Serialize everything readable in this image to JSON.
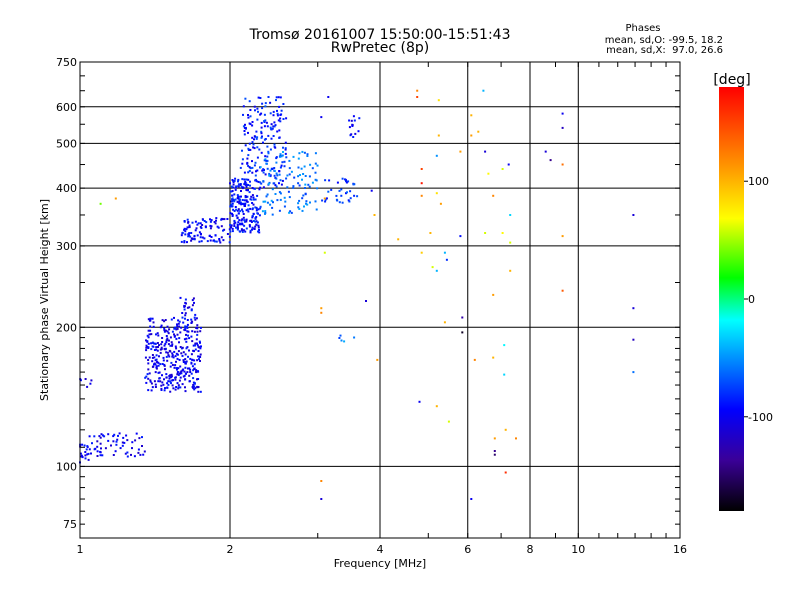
{
  "chart_data": {
    "type": "scatter",
    "title": "Tromsø 20161007 15:50:00-15:51:43",
    "subtitle": "RwPretec (8p)",
    "annotation": {
      "heading": "Phases",
      "line1": "mean, sd,O: -99.5, 18.2",
      "line2": "mean, sd,X:  97.0, 26.6"
    },
    "xlabel": "Frequency [MHz]",
    "ylabel": "Stationary phase Virtual Height [km]",
    "x_scale": "log",
    "y_scale": "log",
    "xlim": [
      1,
      16
    ],
    "ylim": [
      70,
      750
    ],
    "x_ticks": [
      1,
      2,
      4,
      6,
      8,
      10,
      16
    ],
    "x_tick_labels": [
      "1",
      "2",
      "4",
      "6",
      "8",
      "10",
      "16"
    ],
    "y_ticks": [
      75,
      100,
      200,
      300,
      400,
      500,
      600,
      750
    ],
    "y_tick_labels": [
      "75",
      "100",
      "200",
      "300",
      "400",
      "500",
      "600",
      "750"
    ],
    "grid": true,
    "colorbar": {
      "label": "[deg]",
      "range": [
        -180,
        180
      ],
      "ticks": [
        100,
        0,
        -100
      ],
      "tick_labels": [
        "100",
        "0",
        "-100"
      ]
    },
    "clusters": [
      {
        "x": [
          1.0,
          1.05
        ],
        "y": [
          102,
          112
        ],
        "n": 18,
        "phase": -100
      },
      {
        "x": [
          1.04,
          1.35
        ],
        "y": [
          105,
          118
        ],
        "n": 60,
        "phase": -100
      },
      {
        "x": [
          1.0,
          1.06
        ],
        "y": [
          148,
          156
        ],
        "n": 6,
        "phase": -100
      },
      {
        "x": [
          1.35,
          1.75
        ],
        "y": [
          145,
          210
        ],
        "n": 380,
        "phase": -100
      },
      {
        "x": [
          1.58,
          1.72
        ],
        "y": [
          210,
          235
        ],
        "n": 20,
        "phase": -100
      },
      {
        "x": [
          1.6,
          2.0
        ],
        "y": [
          305,
          345
        ],
        "n": 100,
        "phase": -95
      },
      {
        "x": [
          2.0,
          2.3
        ],
        "y": [
          320,
          420
        ],
        "n": 220,
        "phase": -90
      },
      {
        "x": [
          2.1,
          2.6
        ],
        "y": [
          400,
          630
        ],
        "n": 180,
        "phase": -85
      },
      {
        "x": [
          2.3,
          3.0
        ],
        "y": [
          350,
          480
        ],
        "n": 120,
        "phase": -60
      },
      {
        "x": [
          3.0,
          3.6
        ],
        "y": [
          370,
          420
        ],
        "n": 35,
        "phase": -80
      },
      {
        "x": [
          3.45,
          3.65
        ],
        "y": [
          515,
          580
        ],
        "n": 14,
        "phase": -100
      },
      {
        "x": [
          3.3,
          3.55
        ],
        "y": [
          185,
          192
        ],
        "n": 5,
        "phase": -60
      }
    ],
    "points": [
      {
        "x": 1.18,
        "y": 380,
        "phase": 110
      },
      {
        "x": 1.1,
        "y": 370,
        "phase": 40
      },
      {
        "x": 3.05,
        "y": 570,
        "phase": -100
      },
      {
        "x": 3.15,
        "y": 630,
        "phase": -100
      },
      {
        "x": 3.1,
        "y": 380,
        "phase": 110
      },
      {
        "x": 3.1,
        "y": 290,
        "phase": 60
      },
      {
        "x": 3.05,
        "y": 220,
        "phase": 110
      },
      {
        "x": 3.05,
        "y": 215,
        "phase": 120
      },
      {
        "x": 3.05,
        "y": 93,
        "phase": 120
      },
      {
        "x": 3.05,
        "y": 85,
        "phase": -110
      },
      {
        "x": 3.85,
        "y": 395,
        "phase": -100
      },
      {
        "x": 3.9,
        "y": 350,
        "phase": 100
      },
      {
        "x": 3.95,
        "y": 170,
        "phase": 110
      },
      {
        "x": 3.75,
        "y": 228,
        "phase": -110
      },
      {
        "x": 4.35,
        "y": 310,
        "phase": 100
      },
      {
        "x": 4.75,
        "y": 650,
        "phase": 120
      },
      {
        "x": 4.75,
        "y": 630,
        "phase": 150
      },
      {
        "x": 4.85,
        "y": 440,
        "phase": 150
      },
      {
        "x": 4.85,
        "y": 410,
        "phase": 170
      },
      {
        "x": 4.85,
        "y": 385,
        "phase": 120
      },
      {
        "x": 4.85,
        "y": 290,
        "phase": 90
      },
      {
        "x": 4.8,
        "y": 138,
        "phase": -100
      },
      {
        "x": 5.05,
        "y": 320,
        "phase": 100
      },
      {
        "x": 5.1,
        "y": 270,
        "phase": 60
      },
      {
        "x": 5.25,
        "y": 620,
        "phase": 80
      },
      {
        "x": 5.25,
        "y": 520,
        "phase": 100
      },
      {
        "x": 5.2,
        "y": 470,
        "phase": -50
      },
      {
        "x": 5.2,
        "y": 390,
        "phase": 80
      },
      {
        "x": 5.3,
        "y": 370,
        "phase": 110
      },
      {
        "x": 5.2,
        "y": 265,
        "phase": -40
      },
      {
        "x": 5.2,
        "y": 135,
        "phase": 100
      },
      {
        "x": 5.4,
        "y": 290,
        "phase": -40
      },
      {
        "x": 5.45,
        "y": 280,
        "phase": -80
      },
      {
        "x": 5.4,
        "y": 205,
        "phase": 100
      },
      {
        "x": 5.5,
        "y": 125,
        "phase": 60
      },
      {
        "x": 5.8,
        "y": 480,
        "phase": 110
      },
      {
        "x": 5.8,
        "y": 315,
        "phase": -90
      },
      {
        "x": 5.85,
        "y": 210,
        "phase": -130
      },
      {
        "x": 5.85,
        "y": 195,
        "phase": -170
      },
      {
        "x": 6.1,
        "y": 575,
        "phase": 100
      },
      {
        "x": 6.1,
        "y": 520,
        "phase": 110
      },
      {
        "x": 6.1,
        "y": 85,
        "phase": -100
      },
      {
        "x": 6.2,
        "y": 170,
        "phase": 120
      },
      {
        "x": 6.3,
        "y": 530,
        "phase": 100
      },
      {
        "x": 6.45,
        "y": 650,
        "phase": -40
      },
      {
        "x": 6.5,
        "y": 480,
        "phase": -110
      },
      {
        "x": 6.5,
        "y": 320,
        "phase": 60
      },
      {
        "x": 6.6,
        "y": 430,
        "phase": 70
      },
      {
        "x": 6.75,
        "y": 385,
        "phase": 120
      },
      {
        "x": 6.75,
        "y": 235,
        "phase": 110
      },
      {
        "x": 6.75,
        "y": 172,
        "phase": 100
      },
      {
        "x": 6.8,
        "y": 115,
        "phase": 110
      },
      {
        "x": 6.8,
        "y": 108,
        "phase": -140
      },
      {
        "x": 6.8,
        "y": 106,
        "phase": -150
      },
      {
        "x": 7.05,
        "y": 440,
        "phase": 60
      },
      {
        "x": 7.05,
        "y": 320,
        "phase": 70
      },
      {
        "x": 7.1,
        "y": 183,
        "phase": -20
      },
      {
        "x": 7.1,
        "y": 158,
        "phase": -30
      },
      {
        "x": 7.15,
        "y": 120,
        "phase": 100
      },
      {
        "x": 7.15,
        "y": 97,
        "phase": 160
      },
      {
        "x": 7.25,
        "y": 450,
        "phase": -100
      },
      {
        "x": 7.3,
        "y": 350,
        "phase": -30
      },
      {
        "x": 7.3,
        "y": 265,
        "phase": 100
      },
      {
        "x": 7.3,
        "y": 305,
        "phase": 60
      },
      {
        "x": 7.5,
        "y": 115,
        "phase": 120
      },
      {
        "x": 8.6,
        "y": 480,
        "phase": -110
      },
      {
        "x": 8.8,
        "y": 460,
        "phase": -140
      },
      {
        "x": 9.3,
        "y": 580,
        "phase": -100
      },
      {
        "x": 9.3,
        "y": 540,
        "phase": -120
      },
      {
        "x": 9.3,
        "y": 450,
        "phase": 130
      },
      {
        "x": 9.3,
        "y": 315,
        "phase": 110
      },
      {
        "x": 9.3,
        "y": 240,
        "phase": 140
      },
      {
        "x": 12.9,
        "y": 350,
        "phase": -110
      },
      {
        "x": 12.9,
        "y": 220,
        "phase": -110
      },
      {
        "x": 12.9,
        "y": 188,
        "phase": -120
      },
      {
        "x": 12.9,
        "y": 160,
        "phase": -60
      }
    ]
  }
}
